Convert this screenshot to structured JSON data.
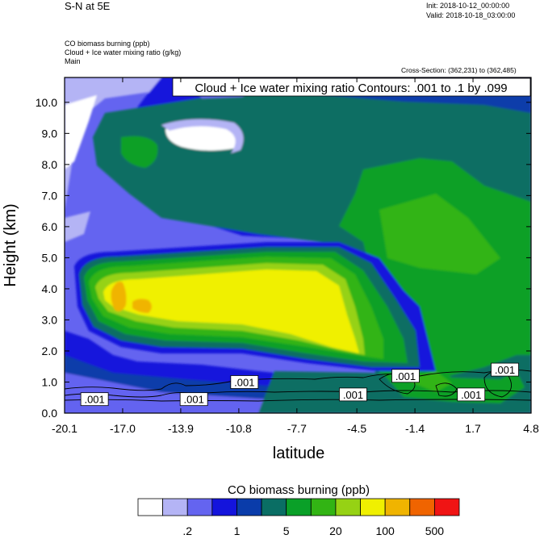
{
  "header": {
    "title_left": "S-N at 5E",
    "init": "Init: 2018-10-12_00:00:00",
    "valid": "Valid: 2018-10-18_03:00:00",
    "fields": [
      "CO biomass burning   (ppb)",
      "Cloud + Ice water mixing ratio   (g/kg)",
      "Main"
    ],
    "cross_section": "Cross-Section: (362,231) to (362,485)"
  },
  "chart_data": {
    "type": "heatmap",
    "contour_title": "Cloud + Ice water mixing ratio Contours: .001 to .1 by .099",
    "xlabel": "latitude",
    "ylabel": "Height (km)",
    "xlim": [
      -20.1,
      4.8
    ],
    "ylim": [
      0.0,
      10.8
    ],
    "x_ticks": [
      "-20.1",
      "-17.0",
      "-13.9",
      "-10.8",
      "-7.7",
      "-4.5",
      "-1.4",
      "1.7",
      "4.8"
    ],
    "y_ticks": [
      "0.0",
      "1.0",
      "2.0",
      "3.0",
      "4.0",
      "5.0",
      "6.0",
      "7.0",
      "8.0",
      "9.0",
      "10.0"
    ],
    "contour_labels": [
      {
        "text": ".001",
        "x": -18.5,
        "y": 0.45
      },
      {
        "text": ".001",
        "x": -13.2,
        "y": 0.45
      },
      {
        "text": ".001",
        "x": -10.5,
        "y": 1.0
      },
      {
        "text": ".001",
        "x": -4.7,
        "y": 0.6
      },
      {
        "text": ".001",
        "x": -1.9,
        "y": 1.2
      },
      {
        "text": ".001",
        "x": 1.6,
        "y": 0.6
      },
      {
        "text": ".001",
        "x": 3.4,
        "y": 1.4
      }
    ],
    "colorbar": {
      "title": "CO biomass burning  (ppb)",
      "colors": [
        "#ffffff",
        "#b4b4f5",
        "#6464f0",
        "#1414dc",
        "#0a3caa",
        "#0a6e64",
        "#0aa028",
        "#32b414",
        "#96d214",
        "#f0f000",
        "#f0b400",
        "#f06400",
        "#f01414"
      ],
      "labels": [
        ".2",
        "1",
        "5",
        "20",
        "100",
        "500"
      ]
    }
  }
}
